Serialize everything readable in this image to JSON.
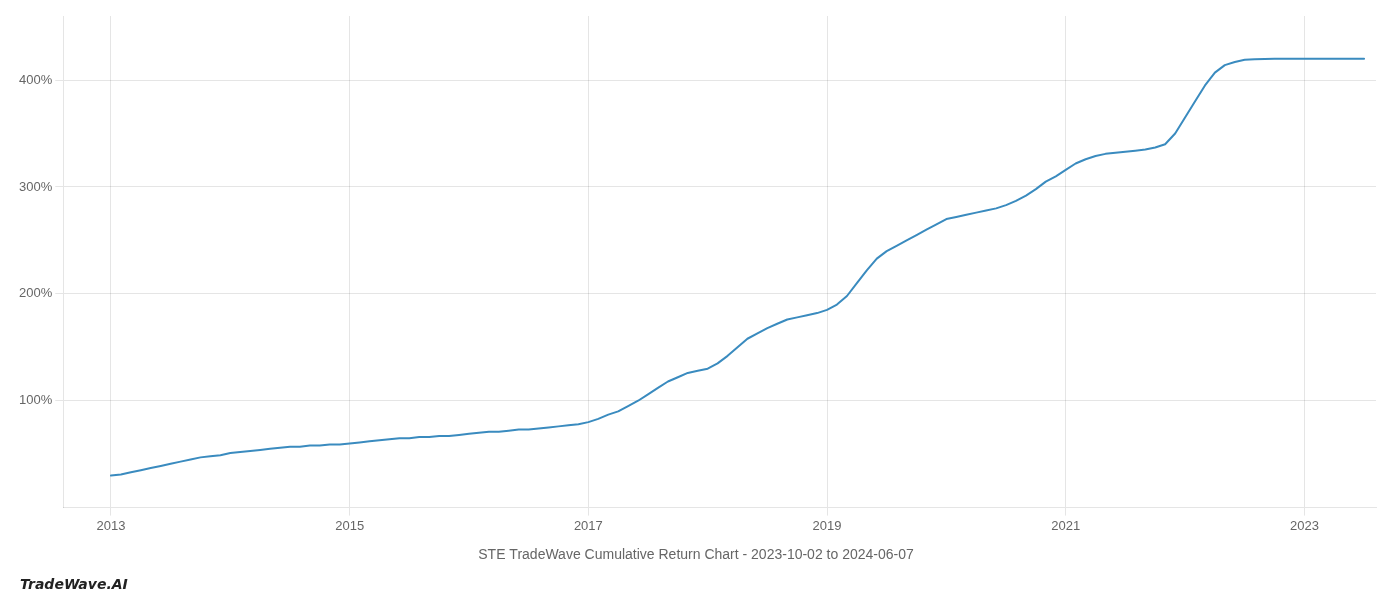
{
  "chart_data": {
    "type": "line",
    "title": "STE TradeWave Cumulative Return Chart - 2023-10-02 to 2024-06-07",
    "annotations": [
      "TradeWave.AI"
    ],
    "color": "#3a8bbf",
    "grid": true,
    "x": [
      2013.0,
      2013.083,
      2013.167,
      2013.25,
      2013.333,
      2013.417,
      2013.5,
      2013.583,
      2013.667,
      2013.75,
      2013.833,
      2013.917,
      2014.0,
      2014.083,
      2014.167,
      2014.25,
      2014.333,
      2014.417,
      2014.5,
      2014.583,
      2014.667,
      2014.75,
      2014.833,
      2014.917,
      2015.0,
      2015.083,
      2015.167,
      2015.25,
      2015.333,
      2015.417,
      2015.5,
      2015.583,
      2015.667,
      2015.75,
      2015.833,
      2015.917,
      2016.0,
      2016.083,
      2016.167,
      2016.25,
      2016.333,
      2016.417,
      2016.5,
      2016.583,
      2016.667,
      2016.75,
      2016.833,
      2016.917,
      2017.0,
      2017.083,
      2017.167,
      2017.25,
      2017.333,
      2017.417,
      2017.5,
      2017.583,
      2017.667,
      2017.75,
      2017.833,
      2017.917,
      2018.0,
      2018.083,
      2018.167,
      2018.25,
      2018.333,
      2018.417,
      2018.5,
      2018.583,
      2018.667,
      2018.75,
      2018.833,
      2018.917,
      2019.0,
      2019.083,
      2019.167,
      2019.25,
      2019.333,
      2019.417,
      2019.5,
      2019.583,
      2019.667,
      2019.75,
      2019.833,
      2019.917,
      2020.0,
      2020.083,
      2020.167,
      2020.25,
      2020.333,
      2020.417,
      2020.5,
      2020.583,
      2020.667,
      2020.75,
      2020.833,
      2020.917,
      2021.0,
      2021.083,
      2021.167,
      2021.25,
      2021.333,
      2021.417,
      2021.5,
      2021.583,
      2021.667,
      2021.75,
      2021.833,
      2021.917,
      2022.0,
      2022.083,
      2022.167,
      2022.25,
      2022.333,
      2022.417,
      2022.5,
      2022.583,
      2022.667,
      2022.75,
      2022.833,
      2022.917,
      2023.0,
      2023.25,
      2023.5
    ],
    "values": [
      30,
      31,
      33,
      35,
      37,
      39,
      41,
      43,
      45,
      47,
      48,
      49,
      51,
      52,
      53,
      54,
      55,
      56,
      57,
      57,
      58,
      58,
      59,
      59,
      60,
      61,
      62,
      63,
      64,
      65,
      65,
      66,
      66,
      67,
      67,
      68,
      69,
      70,
      71,
      71,
      72,
      73,
      73,
      74,
      75,
      76,
      77,
      78,
      80,
      83,
      87,
      90,
      95,
      100,
      106,
      112,
      118,
      122,
      126,
      128,
      130,
      135,
      142,
      150,
      158,
      163,
      168,
      172,
      176,
      178,
      180,
      182,
      185,
      190,
      198,
      210,
      222,
      233,
      240,
      245,
      250,
      255,
      260,
      265,
      270,
      272,
      274,
      276,
      278,
      280,
      283,
      287,
      292,
      298,
      305,
      310,
      316,
      322,
      326,
      329,
      331,
      332,
      333,
      334,
      335,
      337,
      340,
      350,
      365,
      380,
      395,
      407,
      414,
      417,
      419,
      419.5,
      419.8,
      420,
      420,
      420,
      420,
      420,
      420
    ],
    "xlim": [
      2012.6,
      2023.6
    ],
    "xticks": [
      2013,
      2015,
      2017,
      2019,
      2021,
      2023
    ],
    "ylim": [
      0,
      460
    ],
    "yticks": [
      {
        "value": 100,
        "label": "100%"
      },
      {
        "value": 200,
        "label": "200%"
      },
      {
        "value": 300,
        "label": "300%"
      },
      {
        "value": 400,
        "label": "400%"
      }
    ]
  }
}
